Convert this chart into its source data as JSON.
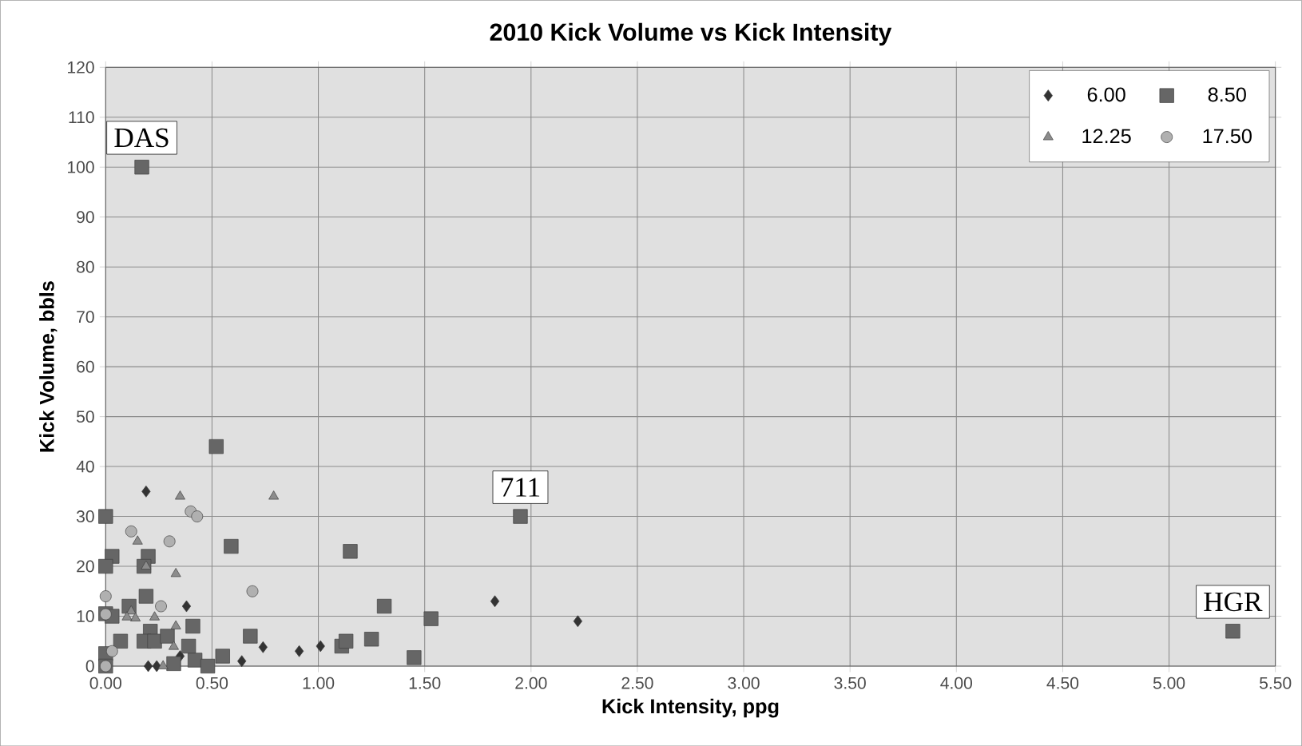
{
  "chart_data": {
    "type": "scatter",
    "title": "2010 Kick Volume vs Kick Intensity",
    "xlabel": "Kick Intensity, ppg",
    "ylabel": "Kick Volume, bbls",
    "xlim": [
      0,
      5.5
    ],
    "ylim": [
      0,
      120
    ],
    "xticks": [
      {
        "value": 0,
        "label": "0.00"
      },
      {
        "value": 0.5,
        "label": "0.50"
      },
      {
        "value": 1,
        "label": "1.00"
      },
      {
        "value": 1.5,
        "label": "1.50"
      },
      {
        "value": 2,
        "label": "2.00"
      },
      {
        "value": 2.5,
        "label": "2.50"
      },
      {
        "value": 3,
        "label": "3.00"
      },
      {
        "value": 3.5,
        "label": "3.50"
      },
      {
        "value": 4,
        "label": "4.00"
      },
      {
        "value": 4.5,
        "label": "4.50"
      },
      {
        "value": 5,
        "label": "5.00"
      },
      {
        "value": 5.5,
        "label": "5.50"
      }
    ],
    "yticks": [
      0,
      10,
      20,
      30,
      40,
      50,
      60,
      70,
      80,
      90,
      100,
      110,
      120
    ],
    "grid": true,
    "legend": "top right",
    "series": [
      {
        "name": "6.00",
        "color": "#333333",
        "marker": "diamond",
        "x": [
          0.19,
          0.38,
          0.35,
          0.2,
          0.24,
          0.64,
          0.74,
          0.91,
          1.01,
          1.83,
          2.22
        ],
        "values": [
          35,
          12,
          2,
          0,
          0,
          1,
          3.8,
          3,
          4,
          13,
          9
        ]
      },
      {
        "name": "8.50",
        "color": "#666666",
        "marker": "square",
        "x": [
          0.17,
          0.52,
          0,
          0.59,
          1.15,
          0.03,
          0.2,
          0,
          0.18,
          0.19,
          0.11,
          0,
          0.03,
          0.21,
          0.41,
          0.07,
          0.18,
          0.23,
          0.29,
          0.39,
          0,
          0.32,
          0.42,
          0.48,
          0,
          0.55,
          0.68,
          1.11,
          1.13,
          1.25,
          1.31,
          1.53,
          1.45,
          1.95,
          5.3
        ],
        "values": [
          100,
          44,
          30,
          24,
          23,
          22,
          22,
          20,
          20,
          14,
          12,
          10.5,
          10,
          7,
          8,
          5,
          5,
          5,
          6,
          4,
          2.5,
          0.5,
          1.2,
          0,
          0,
          2,
          6,
          4,
          5,
          5.4,
          12,
          9.5,
          1.7,
          30,
          7
        ]
      },
      {
        "name": "12.25",
        "color": "#8c8c8c",
        "marker": "triangle",
        "x": [
          0.35,
          0.79,
          0.15,
          0.19,
          0.33,
          0.12,
          0.14,
          0.1,
          0.23,
          0.33,
          0.32,
          0.27
        ],
        "values": [
          34,
          34,
          25,
          20,
          18.5,
          11,
          9.6,
          9.8,
          9.8,
          8,
          3.9,
          0
        ]
      },
      {
        "name": "17.50",
        "color": "#b0b0b0",
        "marker": "circle",
        "x": [
          0.4,
          0.43,
          0.12,
          0.3,
          0.69,
          0,
          0.26,
          0,
          0.03,
          0
        ],
        "values": [
          31,
          30,
          27,
          25,
          15,
          14,
          12,
          10.4,
          3,
          0
        ]
      }
    ],
    "annotations": [
      {
        "text": "DAS",
        "x": 0.17,
        "y": 100
      },
      {
        "text": "711",
        "x": 1.95,
        "y": 30
      },
      {
        "text": "HGR",
        "x": 5.3,
        "y": 7
      }
    ]
  }
}
